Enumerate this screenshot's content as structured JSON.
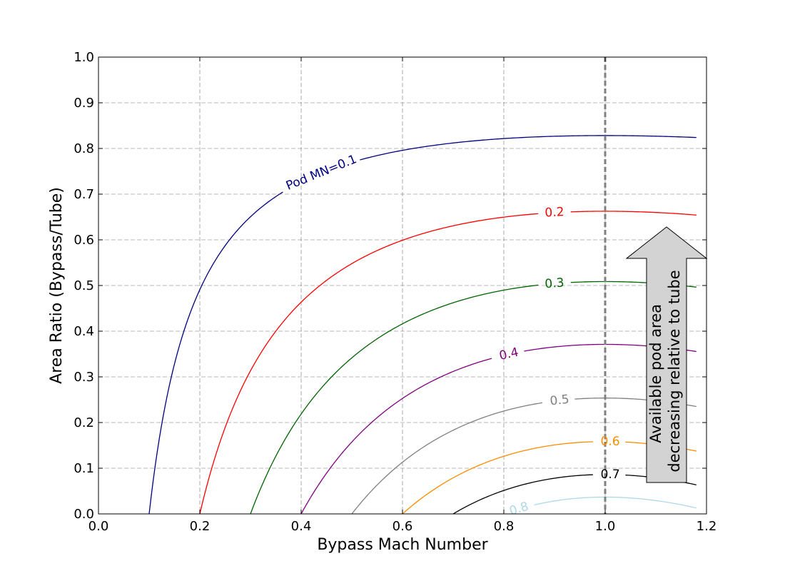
{
  "chart_data": {
    "type": "line",
    "xlabel": "Bypass Mach Number",
    "ylabel": "Area Ratio (Bypass/Tube)",
    "xlim": [
      0.0,
      1.2
    ],
    "ylim": [
      0.0,
      1.0
    ],
    "x_ticks": [
      "0.0",
      "0.2",
      "0.4",
      "0.6",
      "0.8",
      "1.0",
      "1.2"
    ],
    "y_ticks": [
      "0.0",
      "0.1",
      "0.2",
      "0.3",
      "0.4",
      "0.5",
      "0.6",
      "0.7",
      "0.8",
      "0.9",
      "1.0"
    ],
    "grid": true,
    "reference_line": {
      "x": 1.0,
      "color": "#808080",
      "style": "dashed"
    },
    "annotation": {
      "lines": [
        "Available pod area",
        "decreasing relative to tube"
      ]
    },
    "series": [
      {
        "name": "Pod MN=0.1",
        "label": "Pod MN=0.1",
        "color": "#000080",
        "pod_mach": 0.1
      },
      {
        "name": "0.2",
        "label": "0.2",
        "color": "#ff0000",
        "pod_mach": 0.2
      },
      {
        "name": "0.3",
        "label": "0.3",
        "color": "#006400",
        "pod_mach": 0.3
      },
      {
        "name": "0.4",
        "label": "0.4",
        "color": "#800080",
        "pod_mach": 0.4
      },
      {
        "name": "0.5",
        "label": "0.5",
        "color": "#808080",
        "pod_mach": 0.5
      },
      {
        "name": "0.6",
        "label": "0.6",
        "color": "#ff8c00",
        "pod_mach": 0.6
      },
      {
        "name": "0.7",
        "label": "0.7",
        "color": "#000000",
        "pod_mach": 0.7
      },
      {
        "name": "0.8",
        "label": "0.8",
        "color": "#add8e6",
        "pod_mach": 0.8
      }
    ]
  }
}
